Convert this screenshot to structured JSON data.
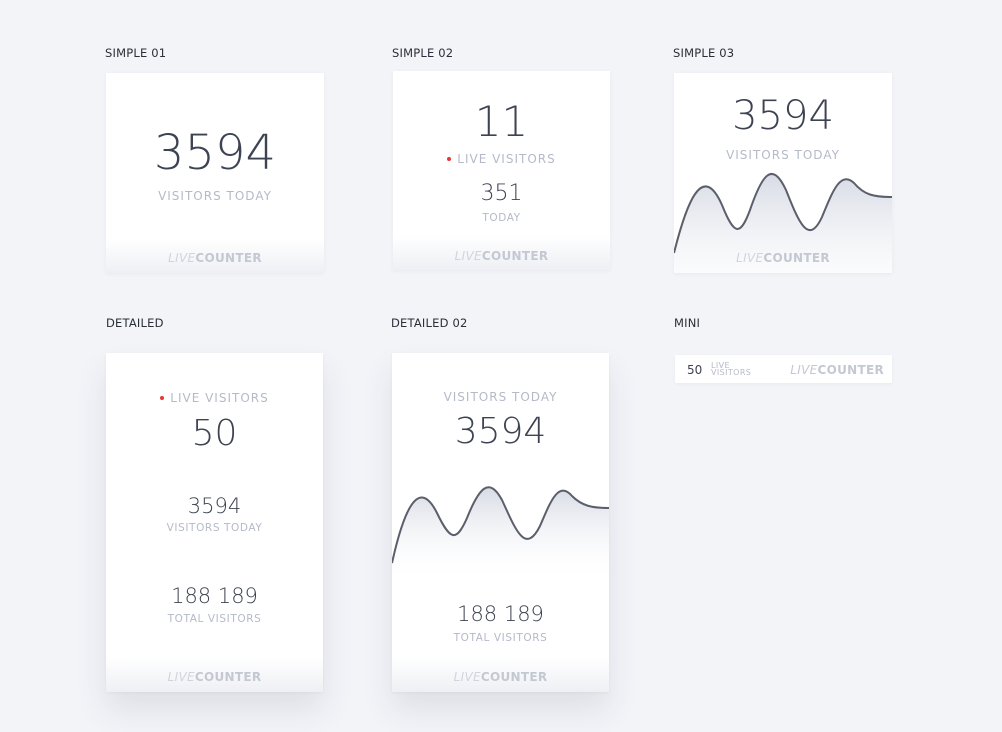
{
  "sections": {
    "simple01": "SIMPLE 01",
    "simple02": "SIMPLE 02",
    "simple03": "SIMPLE 03",
    "detailed": "DETAILED",
    "detailed02": "DETAILED 02",
    "mini": "MINI"
  },
  "brand": {
    "live": "LIVE",
    "counter": "COUNTER"
  },
  "simple01": {
    "value": "3594",
    "caption": "VISITORS TODAY"
  },
  "simple02": {
    "live_value": "11",
    "live_caption": "LIVE VISITORS",
    "today_value": "351",
    "today_caption": "TODAY"
  },
  "simple03": {
    "value": "3594",
    "caption": "VISITORS TODAY"
  },
  "detailed": {
    "live_caption": "LIVE VISITORS",
    "live_value": "50",
    "today_value": "3594",
    "today_caption": "VISITORS TODAY",
    "total_value": "188 189",
    "total_caption": "TOTAL VISITORS"
  },
  "detailed02": {
    "today_caption": "VISITORS TODAY",
    "today_value": "3594",
    "total_value": "188 189",
    "total_caption": "TOTAL VISITORS"
  },
  "mini": {
    "value": "50",
    "caption_line1": "LIVE",
    "caption_line2": "VISITORS"
  },
  "colors": {
    "live_dot": "#e53935",
    "number": "#3e4352",
    "caption": "#b4bac7",
    "wave_stroke": "#5a5f6b",
    "wave_fill": "#dde0e8"
  }
}
